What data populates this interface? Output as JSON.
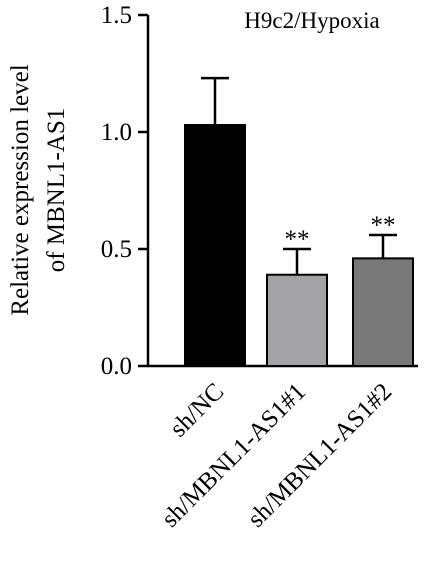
{
  "chart_data": {
    "type": "bar",
    "title": "H9c2/Hypoxia",
    "ylabel_line1": "Relative expression level",
    "ylabel_line2": "of MBNL1-AS1",
    "xlabel": "",
    "ylim": [
      0,
      1.5
    ],
    "yticks": [
      0.0,
      0.5,
      1.0,
      1.5
    ],
    "ytick_labels": [
      "0.0",
      "0.5",
      "1.0",
      "1.5"
    ],
    "grid": false,
    "categories": [
      "sh/NC",
      "sh/MBNL1-AS1#1",
      "sh/MBNL1-AS1#2"
    ],
    "values": [
      1.03,
      0.39,
      0.46
    ],
    "errors": [
      0.2,
      0.11,
      0.1
    ],
    "significance": [
      "",
      "**",
      "**"
    ],
    "colors": [
      "#000000",
      "#a3a3a6",
      "#787878"
    ]
  }
}
